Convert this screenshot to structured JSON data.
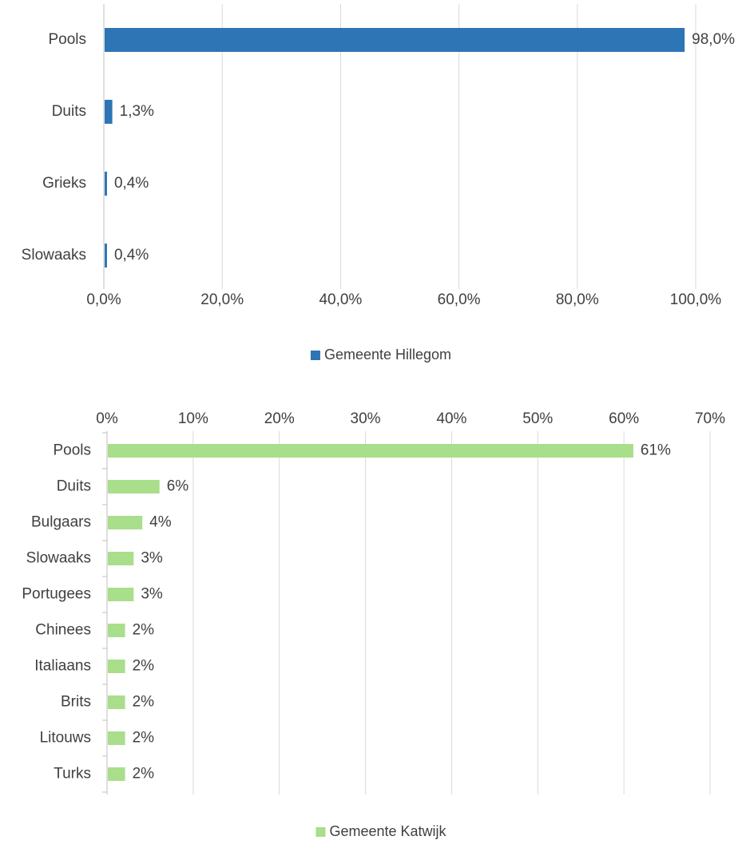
{
  "chart_data": [
    {
      "type": "bar",
      "orientation": "horizontal",
      "categories": [
        "Pools",
        "Duits",
        "Grieks",
        "Slowaaks"
      ],
      "series": [
        {
          "name": "Gemeente Hillegom",
          "values": [
            98.0,
            1.3,
            0.4,
            0.4
          ],
          "color": "#2E75B6"
        }
      ],
      "data_labels": [
        "98,0%",
        "1,3%",
        "0,4%",
        "0,4%"
      ],
      "xticks": [
        "0,0%",
        "20,0%",
        "40,0%",
        "60,0%",
        "80,0%",
        "100,0%"
      ],
      "xlim": [
        0,
        100
      ],
      "xaxis_position": "bottom",
      "grid": true,
      "legend_position": "bottom",
      "title": "",
      "xlabel": "",
      "ylabel": ""
    },
    {
      "type": "bar",
      "orientation": "horizontal",
      "categories": [
        "Pools",
        "Duits",
        "Bulgaars",
        "Slowaaks",
        "Portugees",
        "Chinees",
        "Italiaans",
        "Brits",
        "Litouws",
        "Turks"
      ],
      "series": [
        {
          "name": "Gemeente Katwijk",
          "values": [
            61,
            6,
            4,
            3,
            3,
            2,
            2,
            2,
            2,
            2
          ],
          "color": "#A9DE8A"
        }
      ],
      "data_labels": [
        "61%",
        "6%",
        "4%",
        "3%",
        "3%",
        "2%",
        "2%",
        "2%",
        "2%",
        "2%"
      ],
      "xticks": [
        "0%",
        "10%",
        "20%",
        "30%",
        "40%",
        "50%",
        "60%",
        "70%"
      ],
      "xlim": [
        0,
        70
      ],
      "xaxis_position": "top",
      "grid": true,
      "legend_position": "bottom",
      "title": "",
      "xlabel": "",
      "ylabel": ""
    }
  ]
}
